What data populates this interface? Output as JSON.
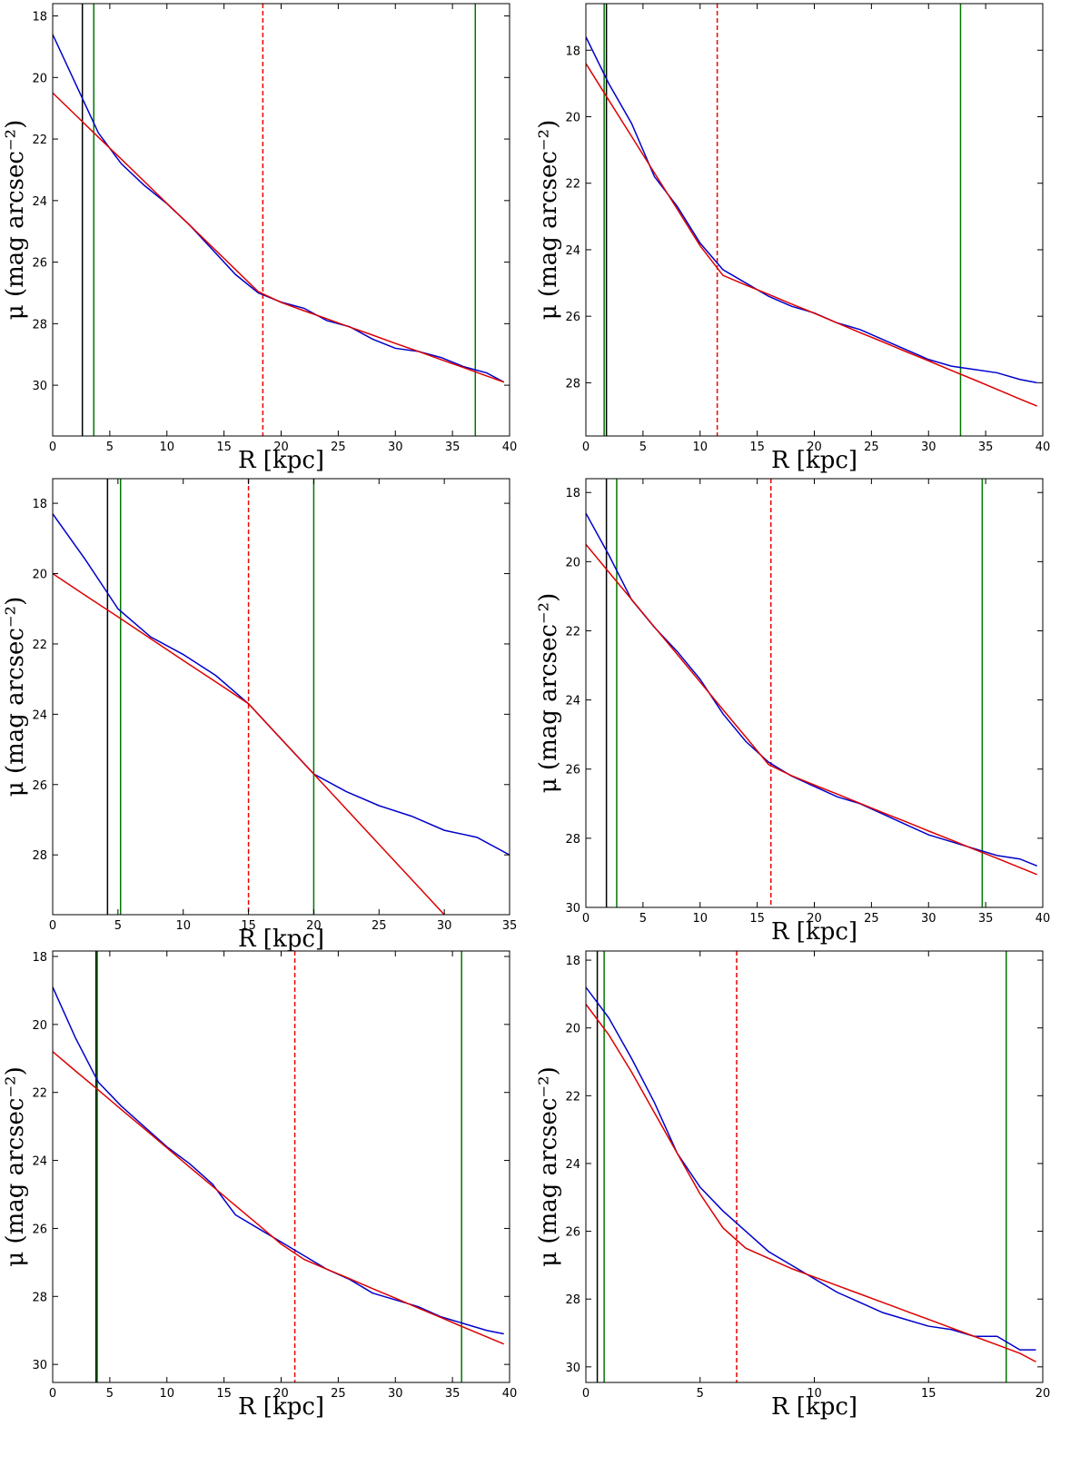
{
  "chart_data": [
    {
      "type": "line",
      "xlabel": "R [kpc]",
      "ylabel": "μ (mag arcsec⁻²)",
      "xlim": [
        0,
        40
      ],
      "xticks": [
        0,
        5,
        10,
        15,
        20,
        25,
        30,
        35,
        40
      ],
      "ylim": [
        31.65,
        17.6
      ],
      "yticks": [
        18,
        20,
        22,
        24,
        26,
        28,
        30
      ],
      "x": [
        0,
        2,
        4,
        6,
        8,
        10,
        12,
        14,
        16,
        18,
        20,
        22,
        24,
        26,
        28,
        30,
        32,
        34,
        36,
        38,
        39.5
      ],
      "series": [
        {
          "color": "#0000cc",
          "values": [
            18.6,
            20.2,
            21.8,
            22.8,
            23.5,
            24.1,
            24.8,
            25.6,
            26.4,
            27.0,
            27.3,
            27.5,
            27.9,
            28.1,
            28.5,
            28.8,
            28.9,
            29.1,
            29.4,
            29.6,
            29.9
          ]
        },
        {
          "color": "#dd0000",
          "values": [
            20.5,
            21.22,
            21.94,
            22.65,
            23.37,
            24.09,
            24.8,
            25.52,
            26.24,
            26.96,
            27.31,
            27.58,
            27.84,
            28.11,
            28.37,
            28.64,
            28.9,
            29.17,
            29.43,
            29.7,
            29.9
          ]
        }
      ],
      "vlines": [
        {
          "x": 2.6,
          "color": "#000000",
          "dashed": false
        },
        {
          "x": 3.6,
          "color": "#007700",
          "dashed": false
        },
        {
          "x": 18.4,
          "color": "#ee0000",
          "dashed": true
        },
        {
          "x": 37,
          "color": "#007700",
          "dashed": false
        }
      ]
    },
    {
      "type": "line",
      "xlabel": "R [kpc]",
      "ylabel": "μ (mag arcsec⁻²)",
      "xlim": [
        0,
        40
      ],
      "xticks": [
        0,
        5,
        10,
        15,
        20,
        25,
        30,
        35,
        40
      ],
      "ylim": [
        29.6,
        16.6
      ],
      "yticks": [
        18,
        20,
        22,
        24,
        26,
        28
      ],
      "x": [
        0,
        2,
        4,
        6,
        8,
        10,
        12,
        14,
        16,
        18,
        20,
        22,
        24,
        26,
        28,
        30,
        32,
        34,
        36,
        38,
        39.5
      ],
      "series": [
        {
          "color": "#0000cc",
          "values": [
            17.6,
            19.0,
            20.2,
            21.8,
            22.7,
            23.8,
            24.6,
            25.0,
            25.4,
            25.7,
            25.9,
            26.2,
            26.4,
            26.7,
            27.0,
            27.3,
            27.5,
            27.6,
            27.7,
            27.9,
            28.0
          ]
        },
        {
          "color": "#dd0000",
          "values": [
            18.4,
            19.5,
            20.59,
            21.69,
            22.78,
            23.88,
            24.77,
            25.06,
            25.34,
            25.63,
            25.91,
            26.2,
            26.49,
            26.77,
            27.06,
            27.34,
            27.63,
            27.91,
            28.2,
            28.49,
            28.7
          ]
        }
      ],
      "vlines": [
        {
          "x": 1.6,
          "color": "#007700",
          "dashed": false
        },
        {
          "x": 1.8,
          "color": "#000000",
          "dashed": false
        },
        {
          "x": 11.5,
          "color": "#ee0000",
          "dashed": true
        },
        {
          "x": 32.8,
          "color": "#007700",
          "dashed": false
        }
      ]
    },
    {
      "type": "line",
      "xlabel": "R [kpc]",
      "ylabel": "μ (mag arcsec⁻²)",
      "xlim": [
        0,
        35
      ],
      "xticks": [
        0,
        5,
        10,
        15,
        20,
        25,
        30,
        35
      ],
      "ylim": [
        29.7,
        17.3
      ],
      "yticks": [
        18,
        20,
        22,
        24,
        26,
        28
      ],
      "x": [
        0,
        2.5,
        5,
        7.5,
        10,
        12.5,
        15,
        17.5,
        20,
        22.5,
        25,
        27.5,
        30,
        32.5,
        35
      ],
      "series": [
        {
          "color": "#0000cc",
          "values": [
            18.3,
            19.6,
            21.0,
            21.8,
            22.3,
            22.9,
            23.7,
            24.7,
            25.7,
            26.2,
            26.6,
            26.9,
            27.3,
            27.5,
            28.0
          ]
        },
        {
          "color": "#dd0000",
          "values": [
            20.0,
            20.62,
            21.23,
            21.85,
            22.47,
            23.08,
            23.7,
            24.7,
            25.7,
            26.7,
            27.7,
            28.7,
            29.7,
            null,
            null
          ]
        }
      ],
      "vlines": [
        {
          "x": 4.2,
          "color": "#000000",
          "dashed": false
        },
        {
          "x": 5.2,
          "color": "#007700",
          "dashed": false
        },
        {
          "x": 15,
          "color": "#ee0000",
          "dashed": true
        },
        {
          "x": 20,
          "color": "#007700",
          "dashed": false
        }
      ]
    },
    {
      "type": "line",
      "xlabel": "R [kpc]",
      "ylabel": "μ (mag arcsec⁻²)",
      "xlim": [
        0,
        40
      ],
      "xticks": [
        0,
        5,
        10,
        15,
        20,
        25,
        30,
        35,
        40
      ],
      "ylim": [
        30,
        17.6
      ],
      "yticks": [
        18,
        20,
        22,
        24,
        26,
        28,
        30
      ],
      "x": [
        0,
        2,
        4,
        6,
        8,
        10,
        12,
        14,
        16,
        18,
        20,
        22,
        24,
        26,
        28,
        30,
        32,
        34,
        36,
        38,
        39.5
      ],
      "series": [
        {
          "color": "#0000cc",
          "values": [
            18.6,
            19.8,
            21.1,
            21.9,
            22.6,
            23.4,
            24.4,
            25.2,
            25.8,
            26.2,
            26.5,
            26.8,
            27.0,
            27.3,
            27.6,
            27.9,
            28.1,
            28.3,
            28.5,
            28.6,
            28.8
          ]
        },
        {
          "color": "#dd0000",
          "values": [
            19.5,
            20.3,
            21.09,
            21.89,
            22.68,
            23.48,
            24.28,
            25.07,
            25.87,
            26.19,
            26.46,
            26.72,
            26.99,
            27.26,
            27.52,
            27.79,
            28.05,
            28.32,
            28.58,
            28.85,
            29.05
          ]
        }
      ],
      "vlines": [
        {
          "x": 1.8,
          "color": "#000000",
          "dashed": false
        },
        {
          "x": 2.7,
          "color": "#007700",
          "dashed": false
        },
        {
          "x": 16.2,
          "color": "#ee0000",
          "dashed": true
        },
        {
          "x": 34.7,
          "color": "#007700",
          "dashed": false
        }
      ]
    },
    {
      "type": "line",
      "xlabel": "R [kpc]",
      "ylabel": "μ (mag arcsec⁻²)",
      "xlim": [
        0,
        40
      ],
      "xticks": [
        0,
        5,
        10,
        15,
        20,
        25,
        30,
        35,
        40
      ],
      "ylim": [
        30.53,
        17.84
      ],
      "yticks": [
        18,
        20,
        22,
        24,
        26,
        28,
        30
      ],
      "x": [
        0,
        2,
        4,
        6,
        8,
        10,
        12,
        14,
        16,
        18,
        20,
        22,
        24,
        26,
        28,
        30,
        32,
        34,
        36,
        38,
        39.5
      ],
      "series": [
        {
          "color": "#0000cc",
          "values": [
            18.9,
            20.4,
            21.7,
            22.4,
            23.0,
            23.6,
            24.1,
            24.7,
            25.6,
            26.0,
            26.4,
            26.8,
            27.2,
            27.5,
            27.9,
            28.1,
            28.3,
            28.6,
            28.8,
            29.0,
            29.1
          ]
        },
        {
          "color": "#dd0000",
          "values": [
            20.8,
            21.37,
            21.93,
            22.5,
            23.06,
            23.63,
            24.2,
            24.76,
            25.33,
            25.89,
            26.46,
            26.91,
            27.2,
            27.48,
            27.77,
            28.05,
            28.34,
            28.62,
            28.91,
            29.19,
            29.4
          ]
        }
      ],
      "vlines": [
        {
          "x": 3.8,
          "color": "#000000",
          "dashed": false
        },
        {
          "x": 3.9,
          "color": "#007700",
          "dashed": false
        },
        {
          "x": 21.2,
          "color": "#ee0000",
          "dashed": true
        },
        {
          "x": 35.8,
          "color": "#007700",
          "dashed": false
        }
      ]
    },
    {
      "type": "line",
      "xlabel": "R [kpc]",
      "ylabel": "μ (mag arcsec⁻²)",
      "xlim": [
        0,
        20
      ],
      "xticks": [
        0,
        5,
        10,
        15,
        20
      ],
      "ylim": [
        30.46,
        17.73
      ],
      "yticks": [
        18,
        20,
        22,
        24,
        26,
        28,
        30
      ],
      "x": [
        0,
        1,
        2,
        3,
        4,
        5,
        6,
        7,
        8,
        9,
        10,
        11,
        12,
        13,
        14,
        15,
        16,
        17,
        18,
        19,
        19.7
      ],
      "series": [
        {
          "color": "#0000cc",
          "values": [
            18.8,
            19.7,
            20.9,
            22.2,
            23.7,
            24.7,
            25.4,
            26.0,
            26.6,
            27.0,
            27.4,
            27.8,
            28.1,
            28.4,
            28.6,
            28.8,
            28.9,
            29.1,
            29.1,
            29.5,
            29.5
          ]
        },
        {
          "color": "#dd0000",
          "values": [
            19.3,
            20.2,
            21.3,
            22.5,
            23.7,
            24.9,
            25.9,
            26.5,
            26.8,
            27.1,
            27.35,
            27.6,
            27.85,
            28.1,
            28.35,
            28.6,
            28.85,
            29.1,
            29.35,
            29.6,
            29.85
          ]
        }
      ],
      "vlines": [
        {
          "x": 0.5,
          "color": "#000000",
          "dashed": false
        },
        {
          "x": 0.8,
          "color": "#007700",
          "dashed": false
        },
        {
          "x": 6.6,
          "color": "#ee0000",
          "dashed": true
        },
        {
          "x": 18.4,
          "color": "#007700",
          "dashed": false
        }
      ]
    }
  ]
}
